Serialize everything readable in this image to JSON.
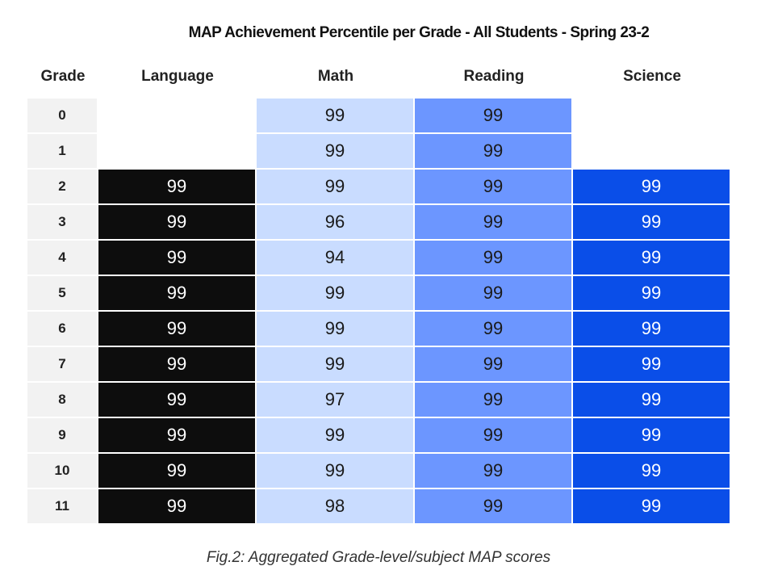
{
  "chart_data": {
    "type": "table",
    "title": "MAP Achievement Percentile per Grade - All Students - Spring 23-2",
    "columns": [
      "Grade",
      "Language",
      "Math",
      "Reading",
      "Science"
    ],
    "rows": [
      {
        "grade": "0",
        "language": null,
        "math": 99,
        "reading": 99,
        "science": null
      },
      {
        "grade": "1",
        "language": null,
        "math": 99,
        "reading": 99,
        "science": null
      },
      {
        "grade": "2",
        "language": 99,
        "math": 99,
        "reading": 99,
        "science": 99
      },
      {
        "grade": "3",
        "language": 99,
        "math": 96,
        "reading": 99,
        "science": 99
      },
      {
        "grade": "4",
        "language": 99,
        "math": 94,
        "reading": 99,
        "science": 99
      },
      {
        "grade": "5",
        "language": 99,
        "math": 99,
        "reading": 99,
        "science": 99
      },
      {
        "grade": "6",
        "language": 99,
        "math": 99,
        "reading": 99,
        "science": 99
      },
      {
        "grade": "7",
        "language": 99,
        "math": 99,
        "reading": 99,
        "science": 99
      },
      {
        "grade": "8",
        "language": 99,
        "math": 97,
        "reading": 99,
        "science": 99
      },
      {
        "grade": "9",
        "language": 99,
        "math": 99,
        "reading": 99,
        "science": 99
      },
      {
        "grade": "10",
        "language": 99,
        "math": 99,
        "reading": 99,
        "science": 99
      },
      {
        "grade": "11",
        "language": 99,
        "math": 98,
        "reading": 99,
        "science": 99
      }
    ],
    "column_colors": {
      "grade": "#f2f2f2",
      "language": "#0d0d0d",
      "math": "#c9dcff",
      "reading": "#6c96ff",
      "science": "#0a4ee8"
    },
    "text_colors": {
      "grade": "#222222",
      "language": "#ffffff",
      "math": "#1a1a1a",
      "reading": "#1a1a1a",
      "science": "#ffffff"
    }
  },
  "caption": "Fig.2: Aggregated Grade-level/subject MAP scores"
}
